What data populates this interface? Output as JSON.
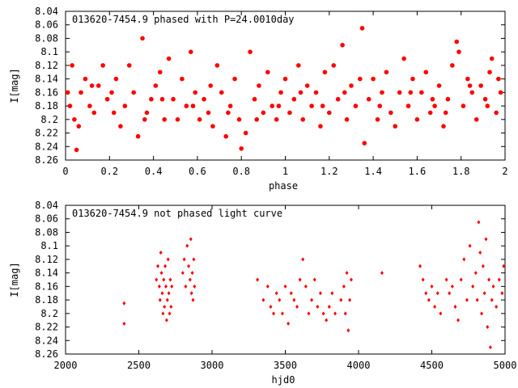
{
  "chart_data": [
    {
      "type": "scatter",
      "title": "013620-7454.9 phased with P=24.0010day",
      "xlabel": "phase",
      "ylabel": "I[mag]",
      "xlim": [
        0,
        2
      ],
      "ylim": [
        8.26,
        8.04
      ],
      "y_inverted": true,
      "grid": false,
      "marker_color": "#ff0000",
      "marker": "filled-circle",
      "xticks": [
        0,
        0.2,
        0.4,
        0.6,
        0.8,
        1,
        1.2,
        1.4,
        1.6,
        1.8,
        2
      ],
      "xtick_labels": [
        "0",
        "0.2",
        "0.4",
        "0.6",
        "0.8",
        "1",
        "1.2",
        "1.4",
        "1.6",
        "1.8",
        "2"
      ],
      "yticks": [
        8.04,
        8.06,
        8.08,
        8.1,
        8.12,
        8.14,
        8.16,
        8.18,
        8.2,
        8.22,
        8.24,
        8.26
      ],
      "ytick_labels": [
        "8.04",
        "8.06",
        "8.08",
        "8.1",
        "8.12",
        "8.14",
        "8.16",
        "8.18",
        "8.2",
        "8.22",
        "8.24",
        "8.26"
      ],
      "series": [
        {
          "points": [
            [
              0.01,
              8.16
            ],
            [
              0.02,
              8.18
            ],
            [
              0.03,
              8.12
            ],
            [
              0.05,
              8.245
            ],
            [
              0.06,
              8.21
            ],
            [
              0.07,
              8.16
            ],
            [
              0.09,
              8.14
            ],
            [
              0.11,
              8.18
            ],
            [
              0.13,
              8.19
            ],
            [
              0.15,
              8.15
            ],
            [
              0.17,
              8.12
            ],
            [
              0.19,
              8.17
            ],
            [
              0.21,
              8.16
            ],
            [
              0.23,
              8.14
            ],
            [
              0.25,
              8.21
            ],
            [
              0.27,
              8.18
            ],
            [
              0.29,
              8.12
            ],
            [
              0.31,
              8.16
            ],
            [
              0.33,
              8.225
            ],
            [
              0.35,
              8.08
            ],
            [
              0.37,
              8.19
            ],
            [
              0.39,
              8.17
            ],
            [
              0.41,
              8.15
            ],
            [
              0.43,
              8.13
            ],
            [
              0.45,
              8.2
            ],
            [
              0.47,
              8.11
            ],
            [
              0.49,
              8.17
            ],
            [
              0.51,
              8.2
            ],
            [
              0.53,
              8.14
            ],
            [
              0.55,
              8.18
            ],
            [
              0.57,
              8.1
            ],
            [
              0.59,
              8.16
            ],
            [
              0.61,
              8.2
            ],
            [
              0.63,
              8.17
            ],
            [
              0.65,
              8.19
            ],
            [
              0.67,
              8.21
            ],
            [
              0.69,
              8.12
            ],
            [
              0.71,
              8.16
            ],
            [
              0.73,
              8.225
            ],
            [
              0.75,
              8.18
            ],
            [
              0.77,
              8.14
            ],
            [
              0.79,
              8.2
            ],
            [
              0.8,
              8.243
            ],
            [
              0.82,
              8.22
            ],
            [
              0.84,
              8.1
            ],
            [
              0.86,
              8.17
            ],
            [
              0.88,
              8.15
            ],
            [
              0.9,
              8.19
            ],
            [
              0.92,
              8.13
            ],
            [
              0.94,
              8.18
            ],
            [
              0.96,
              8.2
            ],
            [
              0.98,
              8.16
            ],
            [
              1.0,
              8.14
            ],
            [
              1.02,
              8.19
            ],
            [
              1.04,
              8.17
            ],
            [
              1.06,
              8.12
            ],
            [
              1.08,
              8.2
            ],
            [
              1.1,
              8.15
            ],
            [
              1.12,
              8.18
            ],
            [
              1.14,
              8.16
            ],
            [
              1.16,
              8.21
            ],
            [
              1.18,
              8.13
            ],
            [
              1.2,
              8.19
            ],
            [
              1.22,
              8.12
            ],
            [
              1.24,
              8.17
            ],
            [
              1.26,
              8.09
            ],
            [
              1.28,
              8.2
            ],
            [
              1.3,
              8.15
            ],
            [
              1.32,
              8.18
            ],
            [
              1.34,
              8.14
            ],
            [
              1.35,
              8.065
            ],
            [
              1.36,
              8.235
            ],
            [
              1.38,
              8.17
            ],
            [
              1.4,
              8.14
            ],
            [
              1.42,
              8.2
            ],
            [
              1.44,
              8.16
            ],
            [
              1.46,
              8.13
            ],
            [
              1.48,
              8.19
            ],
            [
              1.5,
              8.21
            ],
            [
              1.52,
              8.16
            ],
            [
              1.54,
              8.11
            ],
            [
              1.56,
              8.18
            ],
            [
              1.58,
              8.14
            ],
            [
              1.6,
              8.2
            ],
            [
              1.62,
              8.16
            ],
            [
              1.64,
              8.13
            ],
            [
              1.66,
              8.19
            ],
            [
              1.68,
              8.18
            ],
            [
              1.7,
              8.15
            ],
            [
              1.72,
              8.21
            ],
            [
              1.74,
              8.17
            ],
            [
              1.76,
              8.12
            ],
            [
              1.78,
              8.085
            ],
            [
              1.79,
              8.1
            ],
            [
              1.81,
              8.18
            ],
            [
              1.83,
              8.14
            ],
            [
              1.85,
              8.16
            ],
            [
              1.87,
              8.2
            ],
            [
              1.89,
              8.15
            ],
            [
              1.91,
              8.17
            ],
            [
              1.93,
              8.13
            ],
            [
              1.94,
              8.11
            ],
            [
              1.96,
              8.19
            ],
            [
              1.98,
              8.16
            ],
            [
              0.04,
              8.2
            ],
            [
              0.12,
              8.15
            ],
            [
              0.22,
              8.19
            ],
            [
              0.36,
              8.2
            ],
            [
              0.44,
              8.17
            ],
            [
              0.58,
              8.18
            ],
            [
              0.66,
              8.15
            ],
            [
              0.74,
              8.19
            ],
            [
              0.87,
              8.2
            ],
            [
              0.97,
              8.18
            ],
            [
              1.07,
              8.16
            ],
            [
              1.17,
              8.18
            ],
            [
              1.27,
              8.16
            ],
            [
              1.43,
              8.18
            ],
            [
              1.57,
              8.16
            ],
            [
              1.67,
              8.17
            ],
            [
              1.73,
              8.19
            ],
            [
              1.84,
              8.15
            ],
            [
              1.92,
              8.18
            ],
            [
              1.97,
              8.14
            ]
          ]
        }
      ]
    },
    {
      "type": "scatter",
      "title": "013620-7454.9 not phased light curve",
      "xlabel": "hjd0",
      "ylabel": "I[mag]",
      "xlim": [
        2000,
        5000
      ],
      "ylim": [
        8.26,
        8.04
      ],
      "y_inverted": true,
      "grid": false,
      "marker_color": "#ff0000",
      "marker": "small-diamond",
      "xticks": [
        2000,
        2500,
        3000,
        3500,
        4000,
        4500,
        5000
      ],
      "xtick_labels": [
        "2000",
        "2500",
        "3000",
        "3500",
        "4000",
        "4500",
        "5000"
      ],
      "yticks": [
        8.04,
        8.06,
        8.08,
        8.1,
        8.12,
        8.14,
        8.16,
        8.18,
        8.2,
        8.22,
        8.24,
        8.26
      ],
      "ytick_labels": [
        "8.04",
        "8.06",
        "8.08",
        "8.1",
        "8.12",
        "8.14",
        "8.16",
        "8.18",
        "8.2",
        "8.22",
        "8.24",
        "8.26"
      ],
      "series": [
        {
          "points": [
            [
              2400,
              8.185
            ],
            [
              2400,
              8.215
            ],
            [
              2620,
              8.15
            ],
            [
              2630,
              8.13
            ],
            [
              2640,
              8.16
            ],
            [
              2645,
              8.18
            ],
            [
              2650,
              8.11
            ],
            [
              2655,
              8.14
            ],
            [
              2660,
              8.17
            ],
            [
              2665,
              8.2
            ],
            [
              2670,
              8.15
            ],
            [
              2675,
              8.19
            ],
            [
              2680,
              8.13
            ],
            [
              2685,
              8.16
            ],
            [
              2690,
              8.21
            ],
            [
              2695,
              8.18
            ],
            [
              2700,
              8.12
            ],
            [
              2705,
              8.17
            ],
            [
              2710,
              8.2
            ],
            [
              2715,
              8.15
            ],
            [
              2720,
              8.19
            ],
            [
              2725,
              8.16
            ],
            [
              2800,
              8.14
            ],
            [
              2810,
              8.12
            ],
            [
              2820,
              8.16
            ],
            [
              2830,
              8.1
            ],
            [
              2840,
              8.13
            ],
            [
              2850,
              8.15
            ],
            [
              2855,
              8.09
            ],
            [
              2860,
              8.17
            ],
            [
              2865,
              8.14
            ],
            [
              2870,
              8.18
            ],
            [
              2875,
              8.12
            ],
            [
              2880,
              8.16
            ],
            [
              3310,
              8.15
            ],
            [
              3350,
              8.18
            ],
            [
              3380,
              8.16
            ],
            [
              3400,
              8.19
            ],
            [
              3420,
              8.2
            ],
            [
              3440,
              8.17
            ],
            [
              3460,
              8.18
            ],
            [
              3480,
              8.2
            ],
            [
              3500,
              8.16
            ],
            [
              3520,
              8.215
            ],
            [
              3540,
              8.17
            ],
            [
              3560,
              8.18
            ],
            [
              3580,
              8.19
            ],
            [
              3600,
              8.15
            ],
            [
              3620,
              8.12
            ],
            [
              3640,
              8.16
            ],
            [
              3660,
              8.2
            ],
            [
              3680,
              8.18
            ],
            [
              3700,
              8.15
            ],
            [
              3720,
              8.19
            ],
            [
              3740,
              8.17
            ],
            [
              3760,
              8.2
            ],
            [
              3780,
              8.21
            ],
            [
              3800,
              8.19
            ],
            [
              3820,
              8.17
            ],
            [
              3840,
              8.2
            ],
            [
              3880,
              8.18
            ],
            [
              3900,
              8.16
            ],
            [
              3910,
              8.2
            ],
            [
              3920,
              8.14
            ],
            [
              3930,
              8.225
            ],
            [
              3940,
              8.18
            ],
            [
              3950,
              8.15
            ],
            [
              4160,
              8.14
            ],
            [
              4420,
              8.13
            ],
            [
              4440,
              8.15
            ],
            [
              4460,
              8.17
            ],
            [
              4480,
              8.18
            ],
            [
              4500,
              8.16
            ],
            [
              4520,
              8.19
            ],
            [
              4540,
              8.17
            ],
            [
              4560,
              8.2
            ],
            [
              4600,
              8.15
            ],
            [
              4620,
              8.17
            ],
            [
              4640,
              8.16
            ],
            [
              4660,
              8.19
            ],
            [
              4680,
              8.21
            ],
            [
              4700,
              8.15
            ],
            [
              4720,
              8.12
            ],
            [
              4740,
              8.18
            ],
            [
              4760,
              8.1
            ],
            [
              4780,
              8.16
            ],
            [
              4800,
              8.14
            ],
            [
              4810,
              8.18
            ],
            [
              4820,
              8.065
            ],
            [
              4830,
              8.11
            ],
            [
              4840,
              8.2
            ],
            [
              4850,
              8.13
            ],
            [
              4860,
              8.17
            ],
            [
              4870,
              8.09
            ],
            [
              4880,
              8.22
            ],
            [
              4890,
              8.15
            ],
            [
              4900,
              8.25
            ],
            [
              4910,
              8.18
            ],
            [
              4920,
              8.16
            ],
            [
              4940,
              8.19
            ],
            [
              4960,
              8.15
            ],
            [
              4980,
              8.17
            ],
            [
              4990,
              8.13
            ]
          ]
        }
      ]
    }
  ]
}
